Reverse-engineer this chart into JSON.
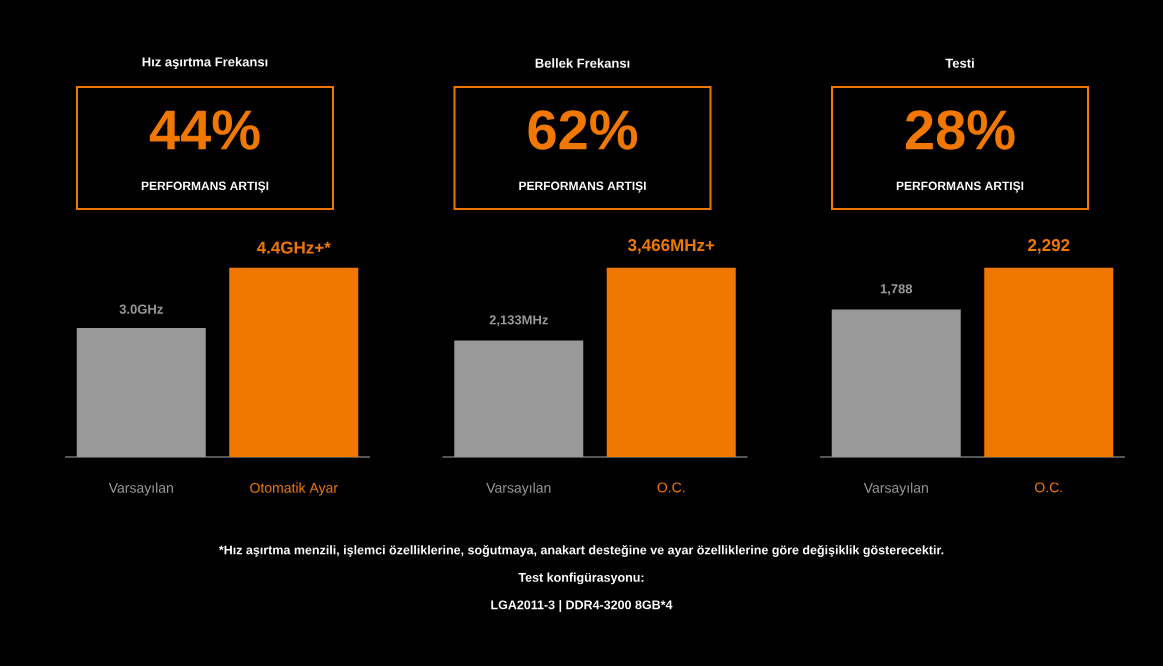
{
  "chart_data": [
    {
      "type": "bar",
      "title": "Hız aşırtma Frekansı",
      "categories": [
        "Varsayılan",
        "Otomatik Ayar"
      ],
      "values": [
        3.0,
        4.4
      ],
      "colors": [
        "#999999",
        "#f07800"
      ],
      "value_labels": [
        "3.0GHz",
        "4.4GHz+*"
      ],
      "annotations": [
        "44%",
        "PERFORMANS ARTIŞI"
      ]
    },
    {
      "type": "bar",
      "title": "Bellek Frekansı",
      "categories": [
        "Varsayılan",
        "O.C."
      ],
      "values": [
        2133,
        3466
      ],
      "colors": [
        "#999999",
        "#f07800"
      ],
      "value_labels": [
        "2,133MHz",
        "3,466MHz+"
      ],
      "annotations": [
        "62%",
        "PERFORMANS ARTIŞI"
      ]
    },
    {
      "type": "bar",
      "title": "Testi",
      "categories": [
        "Varsayılan",
        "O.C."
      ],
      "values": [
        1788,
        2292
      ],
      "colors": [
        "#999999",
        "#f07800"
      ],
      "value_labels": [
        "1,788",
        "2,292"
      ],
      "annotations": [
        "28%",
        "PERFORMANS ARTIŞI"
      ]
    },
    {
      "type": "other",
      "annotations": [
        "*Hız aşırtma menzili, işlemci özelliklerine, soğutmaya, anakart desteğine ve ayar özelliklerine göre değişiklik gösterecektir.",
        "Test konfigürasyonu:",
        "LGA2011-3 | DDR4-3200 8GB*4"
      ]
    }
  ]
}
